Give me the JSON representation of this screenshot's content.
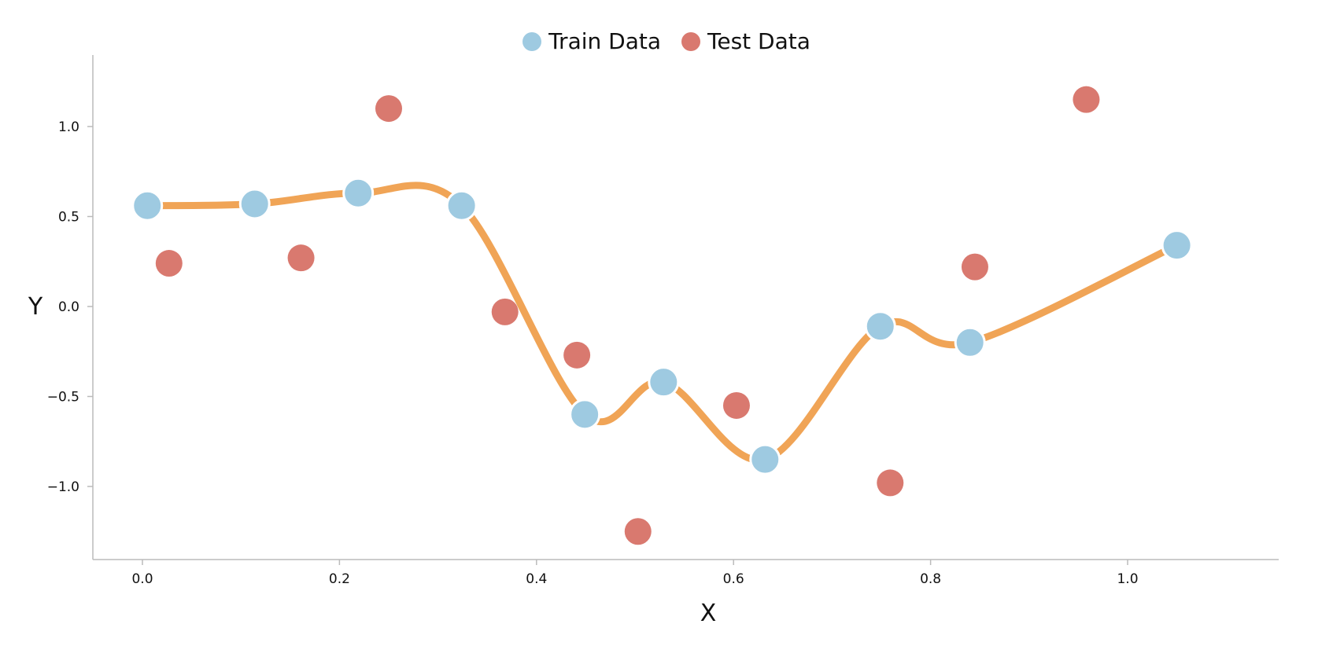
{
  "chart_data": {
    "type": "scatter",
    "title": "",
    "xlabel": "X",
    "ylabel": "Y",
    "xlim": [
      -0.05,
      1.15
    ],
    "ylim": [
      -1.4,
      1.4
    ],
    "x_ticks": [
      "0.0",
      "0.2",
      "0.4",
      "0.6",
      "0.8",
      "1.0"
    ],
    "y_ticks": [
      "1.0",
      "0.5",
      "0.0",
      "−0.5",
      "−1.0"
    ],
    "grid": false,
    "legend_position": "top-center",
    "series": [
      {
        "name": "Train Data",
        "color": "#9ecae1",
        "points": [
          {
            "x": 0.005,
            "y": 0.56
          },
          {
            "x": 0.114,
            "y": 0.57
          },
          {
            "x": 0.219,
            "y": 0.63
          },
          {
            "x": 0.324,
            "y": 0.56
          },
          {
            "x": 0.449,
            "y": -0.6
          },
          {
            "x": 0.529,
            "y": -0.42
          },
          {
            "x": 0.632,
            "y": -0.85
          },
          {
            "x": 0.749,
            "y": -0.11
          },
          {
            "x": 0.84,
            "y": -0.2
          },
          {
            "x": 1.05,
            "y": 0.34
          }
        ]
      },
      {
        "name": "Test Data",
        "color": "#d9796f",
        "points": [
          {
            "x": 0.027,
            "y": 0.24
          },
          {
            "x": 0.161,
            "y": 0.27
          },
          {
            "x": 0.25,
            "y": 1.1
          },
          {
            "x": 0.368,
            "y": -0.03
          },
          {
            "x": 0.441,
            "y": -0.27
          },
          {
            "x": 0.503,
            "y": -1.25
          },
          {
            "x": 0.603,
            "y": -0.55
          },
          {
            "x": 0.759,
            "y": -0.98
          },
          {
            "x": 0.845,
            "y": 0.22
          },
          {
            "x": 0.958,
            "y": 1.15
          }
        ]
      }
    ],
    "fit_line": {
      "color": "#f0a456",
      "points": [
        {
          "x": 0.005,
          "y": 0.56
        },
        {
          "x": 0.114,
          "y": 0.57
        },
        {
          "x": 0.219,
          "y": 0.63
        },
        {
          "x": 0.324,
          "y": 0.56
        },
        {
          "x": 0.449,
          "y": -0.6
        },
        {
          "x": 0.529,
          "y": -0.42
        },
        {
          "x": 0.632,
          "y": -0.85
        },
        {
          "x": 0.749,
          "y": -0.11
        },
        {
          "x": 0.84,
          "y": -0.2
        },
        {
          "x": 1.05,
          "y": 0.34
        }
      ]
    }
  }
}
